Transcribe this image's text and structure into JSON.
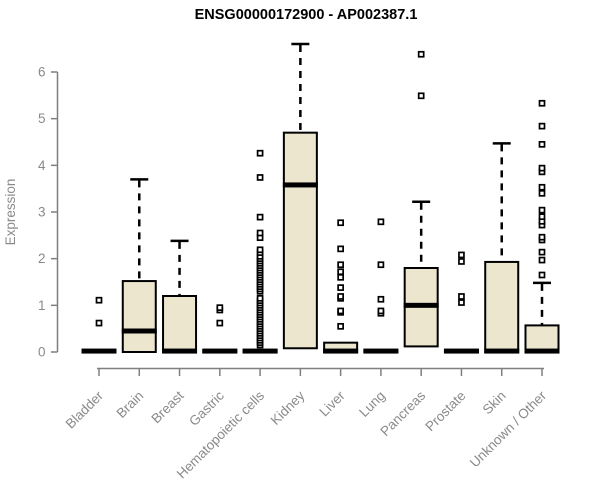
{
  "title": "ENSG00000172900 - AP002387.1",
  "colors": {
    "box_fill": "#ECE6CF",
    "box_border": "#000000",
    "median": "#000000",
    "whisker": "#000000",
    "outlier_border": "#000000",
    "outlier_fill": "#ffffff",
    "axis_line": "#7f7f7f",
    "axis_text": "#8a8a8a",
    "title_text": "#000000",
    "background": "#ffffff"
  },
  "chart_data": {
    "type": "boxplot",
    "title": "ENSG00000172900 - AP002387.1",
    "xlabel": "",
    "ylabel": "Expression",
    "ylim": [
      0,
      6.7
    ],
    "yticks": [
      0,
      1,
      2,
      3,
      4,
      5,
      6
    ],
    "grid": false,
    "legend": "none",
    "categories": [
      "Bladder",
      "Brain",
      "Breast",
      "Gastric",
      "Hematopoietic cells",
      "Kidney",
      "Liver",
      "Lung",
      "Pancreas",
      "Prostate",
      "Skin",
      "Unknown / Other"
    ],
    "series": [
      {
        "category": "Bladder",
        "q1": 0,
        "median": 0.02,
        "q3": 0.04,
        "whisker_low": 0,
        "whisker_high": 0.04,
        "outliers": [
          0.62,
          1.11
        ]
      },
      {
        "category": "Brain",
        "q1": 0,
        "median": 0.45,
        "q3": 1.52,
        "whisker_low": 0,
        "whisker_high": 3.7,
        "outliers": []
      },
      {
        "category": "Breast",
        "q1": 0,
        "median": 0.02,
        "q3": 1.2,
        "whisker_low": 0,
        "whisker_high": 2.38,
        "outliers": []
      },
      {
        "category": "Gastric",
        "q1": 0,
        "median": 0.02,
        "q3": 0.04,
        "whisker_low": 0,
        "whisker_high": 0.04,
        "outliers": [
          0.62,
          0.9,
          0.95
        ]
      },
      {
        "category": "Hematopoietic cells",
        "q1": 0,
        "median": 0.02,
        "q3": 0.04,
        "whisker_low": 0,
        "whisker_high": 0.04,
        "outliers": [
          0.15,
          0.2,
          0.25,
          0.3,
          0.35,
          0.4,
          0.45,
          0.5,
          0.55,
          0.6,
          0.65,
          0.7,
          0.75,
          0.8,
          0.85,
          0.9,
          0.95,
          1.0,
          1.05,
          1.1,
          1.15,
          1.3,
          1.35,
          1.4,
          1.45,
          1.5,
          1.55,
          1.6,
          1.65,
          1.7,
          1.75,
          1.8,
          1.85,
          1.9,
          1.95,
          2.0,
          2.05,
          2.13,
          2.19,
          2.45,
          2.55,
          2.89,
          3.74,
          4.26
        ]
      },
      {
        "category": "Kidney",
        "q1": 0.08,
        "median": 3.58,
        "q3": 4.7,
        "whisker_low": 0.08,
        "whisker_high": 6.6,
        "outliers": []
      },
      {
        "category": "Liver",
        "q1": 0,
        "median": 0.02,
        "q3": 0.2,
        "whisker_low": 0,
        "whisker_high": 0.2,
        "outliers": [
          0.55,
          0.85,
          0.88,
          1.15,
          1.19,
          1.38,
          1.6,
          1.72,
          1.87,
          2.21,
          2.77
        ]
      },
      {
        "category": "Lung",
        "q1": 0,
        "median": 0.02,
        "q3": 0.04,
        "whisker_low": 0,
        "whisker_high": 0.04,
        "outliers": [
          0.83,
          0.88,
          1.13,
          1.87,
          2.79
        ]
      },
      {
        "category": "Pancreas",
        "q1": 0.12,
        "median": 1.0,
        "q3": 1.8,
        "whisker_low": 0.12,
        "whisker_high": 3.22,
        "outliers": [
          5.49,
          6.38
        ]
      },
      {
        "category": "Prostate",
        "q1": 0,
        "median": 0.02,
        "q3": 0.04,
        "whisker_low": 0,
        "whisker_high": 0.04,
        "outliers": [
          1.06,
          1.19,
          1.94,
          2.08
        ]
      },
      {
        "category": "Skin",
        "q1": 0,
        "median": 0.02,
        "q3": 1.93,
        "whisker_low": 0,
        "whisker_high": 4.47,
        "outliers": []
      },
      {
        "category": "Unknown / Other",
        "q1": 0,
        "median": 0.02,
        "q3": 0.57,
        "whisker_low": 0,
        "whisker_high": 1.48,
        "outliers": [
          1.65,
          1.97,
          2.14,
          2.4,
          2.46,
          2.72,
          2.8,
          2.9,
          3.04,
          3.4,
          3.53,
          3.86,
          3.94,
          4.45,
          4.84,
          5.33
        ]
      }
    ]
  }
}
